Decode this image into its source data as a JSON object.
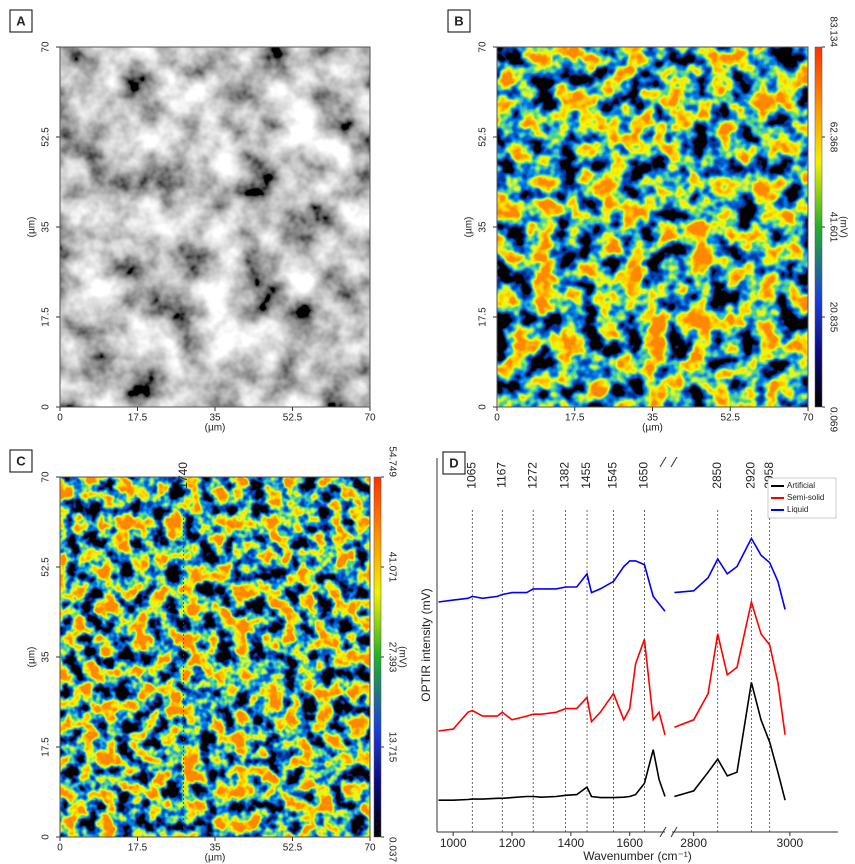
{
  "chart_data": [
    {
      "type": "image",
      "label": "A",
      "xlim": [
        0,
        70
      ],
      "ylim": [
        0,
        70
      ],
      "xticks": [
        0,
        17.5,
        35,
        52.5,
        70
      ],
      "yticks": [
        0,
        17.5,
        35,
        52.5,
        70
      ],
      "xlabel": "(µm)",
      "ylabel": "(µm)"
    },
    {
      "type": "heatmap",
      "label": "B",
      "xlim": [
        0,
        70
      ],
      "ylim": [
        0,
        70
      ],
      "xticks": [
        0,
        17.5,
        35,
        52.5,
        70
      ],
      "yticks": [
        0,
        17.5,
        35,
        52.5,
        70
      ],
      "xlabel": "(µm)",
      "ylabel": "(µm)",
      "colorbar": {
        "clim": [
          0.069,
          83.134
        ],
        "ticks": [
          0.069,
          20.835,
          41.601,
          62.368,
          83.134
        ],
        "label": "(mV)"
      }
    },
    {
      "type": "heatmap",
      "label": "C",
      "xlim": [
        0,
        70
      ],
      "ylim": [
        0,
        70
      ],
      "xticks": [
        0,
        17.5,
        35,
        52.5,
        70
      ],
      "yticks": [
        0,
        17.5,
        35,
        52.5,
        70
      ],
      "xlabel": "(µm)",
      "ylabel": "(µm)",
      "colorbar": {
        "clim": [
          0.037,
          54.749
        ],
        "ticks": [
          0.037,
          13.715,
          27.393,
          41.071,
          54.749
        ],
        "label": "(mV)"
      }
    },
    {
      "type": "line",
      "label": "D",
      "xlabel": "Wavenumber (cm⁻¹)",
      "ylabel": "OPTIR intensity (mV)",
      "xlim": [
        945,
        3100
      ],
      "x_break": [
        1720,
        2755
      ],
      "ylim": [
        0,
        10
      ],
      "xticks": [
        1000,
        1200,
        1400,
        1600,
        2800,
        3000
      ],
      "peak_labels": [
        1065,
        1167,
        1272,
        1382,
        1455,
        1545,
        1650,
        1740,
        2850,
        2920,
        2958
      ],
      "legend": "upper right",
      "x": [
        950,
        1000,
        1050,
        1065,
        1100,
        1150,
        1167,
        1200,
        1250,
        1272,
        1300,
        1350,
        1382,
        1420,
        1455,
        1470,
        1500,
        1545,
        1580,
        1600,
        1620,
        1650,
        1680,
        1700,
        1720,
        2000,
        2760,
        2800,
        2830,
        2850,
        2870,
        2890,
        2920,
        2940,
        2958,
        2975,
        2990
      ],
      "series": [
        {
          "name": "Artificial",
          "color": "#000000",
          "values": [
            0.85,
            0.85,
            0.87,
            0.88,
            0.88,
            0.9,
            0.9,
            0.92,
            0.95,
            0.95,
            0.93,
            0.95,
            0.98,
            1.0,
            1.2,
            0.95,
            0.92,
            0.92,
            0.93,
            0.95,
            1.0,
            1.3,
            2.2,
            1.4,
            0.95,
            null,
            0.95,
            1.1,
            1.6,
            1.95,
            1.5,
            1.6,
            4.0,
            3.0,
            2.4,
            1.6,
            0.85
          ]
        },
        {
          "name": "Semi-solid",
          "color": "#ff0000",
          "values": [
            2.7,
            2.75,
            3.2,
            3.25,
            3.1,
            3.1,
            3.2,
            3.0,
            3.1,
            3.15,
            3.15,
            3.2,
            3.3,
            3.3,
            3.6,
            2.95,
            3.2,
            3.7,
            3.0,
            3.3,
            4.5,
            5.15,
            3.0,
            3.2,
            2.6,
            null,
            2.8,
            3.0,
            3.7,
            5.3,
            4.2,
            4.4,
            6.15,
            5.3,
            5.0,
            4.0,
            2.6
          ]
        },
        {
          "name": "Liquid",
          "color": "#0000ff",
          "values": [
            6.15,
            6.2,
            6.25,
            6.3,
            6.25,
            6.3,
            6.35,
            6.4,
            6.4,
            6.5,
            6.5,
            6.5,
            6.55,
            6.55,
            6.9,
            6.4,
            6.5,
            6.7,
            7.1,
            7.25,
            7.25,
            7.15,
            6.3,
            6.1,
            5.9,
            null,
            6.4,
            6.45,
            6.8,
            7.3,
            6.9,
            7.1,
            7.85,
            7.4,
            7.2,
            6.7,
            5.95
          ]
        }
      ]
    }
  ]
}
